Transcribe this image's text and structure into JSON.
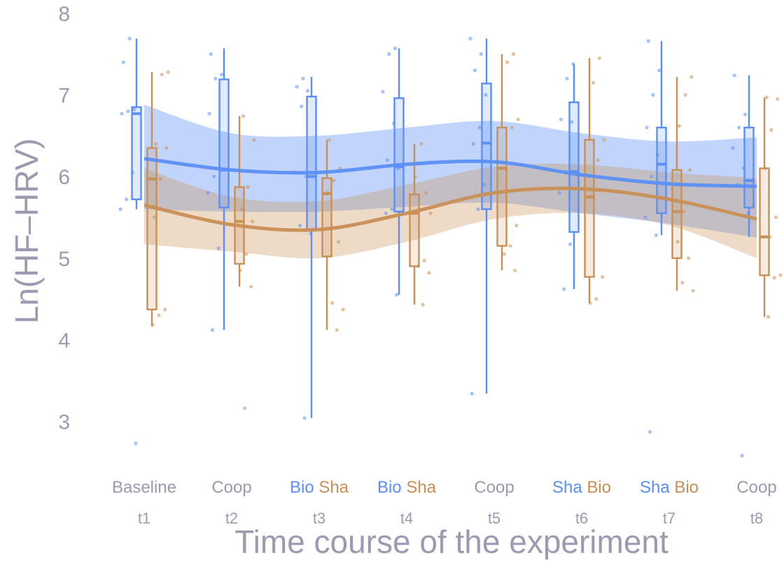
{
  "chart_data": {
    "type": "box",
    "ylabel": "Ln(HF–HRV)",
    "xlabel": "Time course of the experiment",
    "ylim": [
      2.3,
      8.15
    ],
    "yticks": [
      3,
      4,
      5,
      6,
      7,
      8
    ],
    "grid": false,
    "legend": "none",
    "colors": {
      "blue": "#5b8ff5",
      "orange": "#c98f55",
      "axis_text": "#9a9ab0"
    },
    "categories": [
      {
        "time": "t1",
        "labels": [
          {
            "text": "Baseline",
            "color": "grey"
          }
        ]
      },
      {
        "time": "t2",
        "labels": [
          {
            "text": "Coop",
            "color": "grey"
          }
        ]
      },
      {
        "time": "t3",
        "labels": [
          {
            "text": "Bio",
            "color": "blue"
          },
          {
            "text": "Sha",
            "color": "orange"
          }
        ]
      },
      {
        "time": "t4",
        "labels": [
          {
            "text": "Bio",
            "color": "blue"
          },
          {
            "text": "Sha",
            "color": "orange"
          }
        ]
      },
      {
        "time": "t5",
        "labels": [
          {
            "text": "Coop",
            "color": "grey"
          }
        ]
      },
      {
        "time": "t6",
        "labels": [
          {
            "text": "Sha",
            "color": "blue"
          },
          {
            "text": "Bio",
            "color": "orange"
          }
        ]
      },
      {
        "time": "t7",
        "labels": [
          {
            "text": "Sha",
            "color": "blue"
          },
          {
            "text": "Bio",
            "color": "orange"
          }
        ]
      },
      {
        "time": "t8",
        "labels": [
          {
            "text": "Coop",
            "color": "grey"
          }
        ]
      }
    ],
    "series": [
      {
        "color": "blue",
        "boxes": [
          {
            "min": 5.6,
            "q1": 5.72,
            "median": 6.77,
            "q3": 6.85,
            "max": 7.69
          },
          {
            "min": 4.12,
            "q1": 5.62,
            "median": 6.08,
            "q3": 7.19,
            "max": 7.57
          },
          {
            "min": 3.04,
            "q1": 5.35,
            "median": 6.0,
            "q3": 6.98,
            "max": 7.22
          },
          {
            "min": 4.55,
            "q1": 5.57,
            "median": 6.12,
            "q3": 6.96,
            "max": 7.57
          },
          {
            "min": 3.34,
            "q1": 5.6,
            "median": 6.41,
            "q3": 7.14,
            "max": 7.69
          },
          {
            "min": 4.62,
            "q1": 5.32,
            "median": 6.06,
            "q3": 6.91,
            "max": 7.38
          },
          {
            "min": 5.28,
            "q1": 5.55,
            "median": 6.15,
            "q3": 6.6,
            "max": 7.66
          },
          {
            "min": 5.26,
            "q1": 5.62,
            "median": 5.95,
            "q3": 6.6,
            "max": 7.24
          }
        ],
        "trend": [
          6.22,
          6.08,
          6.05,
          6.15,
          6.18,
          6.02,
          5.91,
          5.88
        ],
        "band_lower": [
          5.6,
          5.57,
          5.57,
          5.63,
          5.68,
          5.55,
          5.42,
          5.25
        ],
        "band_upper": [
          6.88,
          6.53,
          6.5,
          6.6,
          6.68,
          6.53,
          6.43,
          6.48
        ],
        "points": [
          [
            1,
            5.6
          ],
          [
            1,
            5.72
          ],
          [
            1,
            6.05
          ],
          [
            1,
            6.77
          ],
          [
            1,
            6.8
          ],
          [
            1,
            6.82
          ],
          [
            1,
            7.4
          ],
          [
            1,
            7.69
          ],
          [
            1,
            2.73
          ],
          [
            2,
            4.12
          ],
          [
            2,
            5.12
          ],
          [
            2,
            5.8
          ],
          [
            2,
            6.0
          ],
          [
            2,
            6.1
          ],
          [
            2,
            6.77
          ],
          [
            2,
            7.2
          ],
          [
            2,
            7.25
          ],
          [
            2,
            7.5
          ],
          [
            3,
            3.04
          ],
          [
            3,
            5.3
          ],
          [
            3,
            5.4
          ],
          [
            3,
            6.0
          ],
          [
            3,
            6.05
          ],
          [
            3,
            6.86
          ],
          [
            3,
            7.05
          ],
          [
            3,
            7.1
          ],
          [
            3,
            7.2
          ],
          [
            4,
            4.55
          ],
          [
            4,
            5.55
          ],
          [
            4,
            5.6
          ],
          [
            4,
            6.1
          ],
          [
            4,
            6.2
          ],
          [
            4,
            6.65
          ],
          [
            4,
            7.04
          ],
          [
            4,
            7.5
          ],
          [
            4,
            7.57
          ],
          [
            5,
            3.34
          ],
          [
            5,
            5.6
          ],
          [
            5,
            5.9
          ],
          [
            5,
            6.4
          ],
          [
            5,
            6.6
          ],
          [
            5,
            7.0
          ],
          [
            5,
            7.3
          ],
          [
            5,
            7.5
          ],
          [
            5,
            7.69
          ],
          [
            6,
            4.62
          ],
          [
            6,
            5.17
          ],
          [
            6,
            5.8
          ],
          [
            6,
            6.06
          ],
          [
            6,
            6.67
          ],
          [
            6,
            6.7
          ],
          [
            6,
            7.2
          ],
          [
            6,
            7.38
          ],
          [
            7,
            2.87
          ],
          [
            7,
            5.28
          ],
          [
            7,
            5.5
          ],
          [
            7,
            6.0
          ],
          [
            7,
            6.26
          ],
          [
            7,
            6.6
          ],
          [
            7,
            7.0
          ],
          [
            7,
            7.3
          ],
          [
            7,
            7.66
          ],
          [
            8,
            2.58
          ],
          [
            8,
            5.55
          ],
          [
            8,
            5.9
          ],
          [
            8,
            6.1
          ],
          [
            8,
            6.35
          ],
          [
            8,
            6.6
          ],
          [
            8,
            6.76
          ],
          [
            8,
            7.24
          ]
        ]
      },
      {
        "color": "orange",
        "boxes": [
          {
            "min": 4.17,
            "q1": 4.37,
            "median": 5.97,
            "q3": 6.35,
            "max": 7.28
          },
          {
            "min": 4.65,
            "q1": 4.93,
            "median": 5.45,
            "q3": 5.87,
            "max": 6.74
          },
          {
            "min": 4.12,
            "q1": 5.02,
            "median": 5.79,
            "q3": 5.98,
            "max": 6.45
          },
          {
            "min": 4.43,
            "q1": 4.9,
            "median": 5.55,
            "q3": 5.78,
            "max": 6.4
          },
          {
            "min": 4.85,
            "q1": 5.15,
            "median": 6.1,
            "q3": 6.6,
            "max": 7.5
          },
          {
            "min": 4.45,
            "q1": 4.77,
            "median": 5.75,
            "q3": 6.45,
            "max": 7.45
          },
          {
            "min": 4.6,
            "q1": 5.0,
            "median": 5.57,
            "q3": 6.08,
            "max": 7.22
          },
          {
            "min": 4.28,
            "q1": 4.79,
            "median": 5.26,
            "q3": 6.1,
            "max": 6.97
          }
        ],
        "trend": [
          5.65,
          5.41,
          5.35,
          5.55,
          5.8,
          5.85,
          5.72,
          5.48
        ],
        "band_lower": [
          5.17,
          5.08,
          5.0,
          5.2,
          5.48,
          5.55,
          5.4,
          5.0
        ],
        "band_upper": [
          6.1,
          5.75,
          5.7,
          5.9,
          6.12,
          6.15,
          6.05,
          5.98
        ],
        "points": [
          [
            1,
            4.18
          ],
          [
            1,
            4.3
          ],
          [
            1,
            4.37
          ],
          [
            1,
            5.5
          ],
          [
            1,
            5.97
          ],
          [
            1,
            6.35
          ],
          [
            1,
            6.4
          ],
          [
            1,
            7.25
          ],
          [
            1,
            7.28
          ],
          [
            2,
            3.16
          ],
          [
            2,
            4.65
          ],
          [
            2,
            4.85
          ],
          [
            2,
            5.05
          ],
          [
            2,
            5.45
          ],
          [
            2,
            5.6
          ],
          [
            2,
            5.87
          ],
          [
            2,
            6.45
          ],
          [
            2,
            6.74
          ],
          [
            3,
            4.12
          ],
          [
            3,
            4.37
          ],
          [
            3,
            4.45
          ],
          [
            3,
            5.2
          ],
          [
            3,
            5.8
          ],
          [
            3,
            5.95
          ],
          [
            3,
            6.1
          ],
          [
            3,
            6.45
          ],
          [
            4,
            4.43
          ],
          [
            4,
            4.82
          ],
          [
            4,
            4.9
          ],
          [
            4,
            4.97
          ],
          [
            4,
            5.55
          ],
          [
            4,
            5.6
          ],
          [
            4,
            5.8
          ],
          [
            4,
            6.0
          ],
          [
            4,
            6.4
          ],
          [
            5,
            4.85
          ],
          [
            5,
            5.05
          ],
          [
            5,
            5.15
          ],
          [
            5,
            5.4
          ],
          [
            5,
            6.1
          ],
          [
            5,
            6.6
          ],
          [
            5,
            6.7
          ],
          [
            5,
            7.4
          ],
          [
            5,
            7.5
          ],
          [
            6,
            4.45
          ],
          [
            6,
            4.5
          ],
          [
            6,
            4.77
          ],
          [
            6,
            5.75
          ],
          [
            6,
            6.2
          ],
          [
            6,
            6.45
          ],
          [
            6,
            7.15
          ],
          [
            6,
            7.45
          ],
          [
            7,
            4.6
          ],
          [
            7,
            4.7
          ],
          [
            7,
            5.0
          ],
          [
            7,
            5.2
          ],
          [
            7,
            5.57
          ],
          [
            7,
            6.08
          ],
          [
            7,
            6.62
          ],
          [
            7,
            7.0
          ],
          [
            7,
            7.22
          ],
          [
            8,
            4.28
          ],
          [
            8,
            4.76
          ],
          [
            8,
            4.79
          ],
          [
            8,
            5.26
          ],
          [
            8,
            5.5
          ],
          [
            8,
            6.1
          ],
          [
            8,
            6.57
          ],
          [
            8,
            6.95
          ],
          [
            8,
            6.97
          ]
        ]
      }
    ]
  }
}
